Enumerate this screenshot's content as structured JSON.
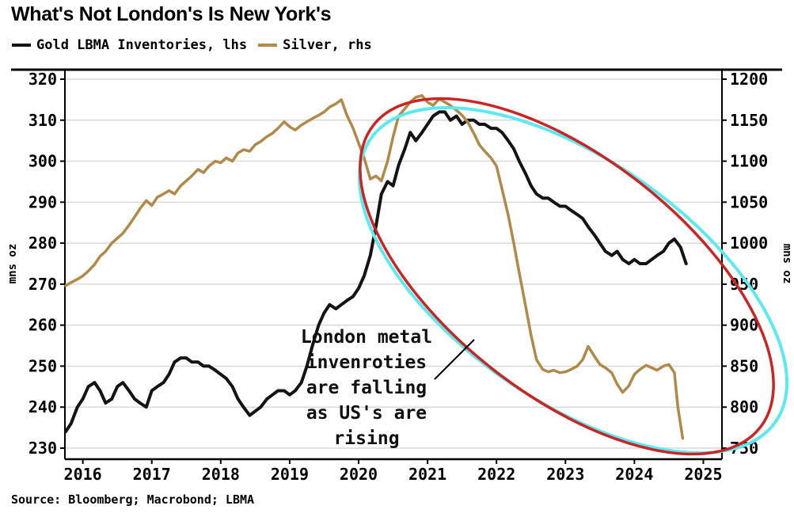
{
  "title": "What's Not London's Is New York's",
  "source": "Source: Bloomberg; Macrobond; LBMA",
  "legend": [
    {
      "label": "Gold LBMA Inventories, lhs",
      "color": "#141414"
    },
    {
      "label": "Silver, rhs",
      "color": "#b18a4a"
    }
  ],
  "annotation": {
    "text_lines": [
      "London metal",
      "invenroties",
      "are falling",
      "as US's are",
      "rising"
    ],
    "ellipse_color": "#cb2423",
    "ellipse_glow_color": "#5ce9f0",
    "pointer_color": "#000000"
  },
  "chart_data": {
    "type": "line",
    "title": "What's Not London's Is New York's",
    "grid": true,
    "legend_position": "top",
    "x_ticks": [
      2016,
      2017,
      2018,
      2019,
      2020,
      2021,
      2022,
      2023,
      2024,
      2025
    ],
    "x_range": [
      2015.74,
      2025.27
    ],
    "left_axis": {
      "label": "mns oz",
      "min": 230,
      "max": 320,
      "step": 10
    },
    "right_axis": {
      "label": "mns oz",
      "min": 750,
      "max": 1200,
      "step": 50
    },
    "series": [
      {
        "name": "Gold LBMA Inventories, lhs",
        "axis": "left",
        "color": "#141414",
        "x": [
          2015.75,
          2015.83,
          2015.92,
          2016.0,
          2016.08,
          2016.17,
          2016.25,
          2016.33,
          2016.42,
          2016.5,
          2016.58,
          2016.67,
          2016.75,
          2016.83,
          2016.92,
          2017.0,
          2017.08,
          2017.17,
          2017.25,
          2017.33,
          2017.42,
          2017.5,
          2017.58,
          2017.67,
          2017.75,
          2017.83,
          2017.92,
          2018.0,
          2018.08,
          2018.17,
          2018.25,
          2018.33,
          2018.42,
          2018.5,
          2018.58,
          2018.67,
          2018.75,
          2018.83,
          2018.92,
          2019.0,
          2019.08,
          2019.17,
          2019.25,
          2019.33,
          2019.42,
          2019.5,
          2019.58,
          2019.67,
          2019.75,
          2019.83,
          2019.92,
          2020.0,
          2020.08,
          2020.17,
          2020.25,
          2020.33,
          2020.42,
          2020.5,
          2020.58,
          2020.67,
          2020.75,
          2020.83,
          2020.92,
          2021.0,
          2021.08,
          2021.17,
          2021.25,
          2021.33,
          2021.42,
          2021.5,
          2021.58,
          2021.67,
          2021.75,
          2021.83,
          2021.92,
          2022.0,
          2022.08,
          2022.17,
          2022.25,
          2022.33,
          2022.42,
          2022.5,
          2022.58,
          2022.67,
          2022.75,
          2022.83,
          2022.92,
          2023.0,
          2023.08,
          2023.17,
          2023.25,
          2023.33,
          2023.42,
          2023.5,
          2023.58,
          2023.67,
          2023.75,
          2023.83,
          2023.92,
          2024.0,
          2024.08,
          2024.17,
          2024.25,
          2024.33,
          2024.42,
          2024.5,
          2024.58,
          2024.67,
          2024.75
        ],
        "values": [
          234,
          236,
          240,
          242,
          245,
          246,
          244,
          241,
          242,
          245,
          246,
          244,
          242,
          241,
          240,
          244,
          245,
          246,
          248,
          251,
          252,
          252,
          251,
          251,
          250,
          250,
          249,
          248,
          247,
          245,
          242,
          240,
          238,
          239,
          240,
          242,
          243,
          244,
          244,
          243,
          244,
          246,
          250,
          255,
          260,
          263,
          265,
          264,
          265,
          266,
          267,
          269,
          272,
          277,
          284,
          292,
          295,
          294,
          299,
          303,
          307,
          305,
          307,
          309,
          311,
          312,
          312,
          310,
          311,
          309,
          310,
          310,
          309,
          309,
          308,
          308,
          307,
          305,
          303,
          300,
          297,
          294,
          292,
          291,
          291,
          290,
          289,
          289,
          288,
          287,
          286,
          284,
          282,
          280,
          278,
          277,
          278,
          276,
          275,
          276,
          275,
          275,
          276,
          277,
          278,
          280,
          281,
          279,
          275
        ]
      },
      {
        "name": "Silver, rhs",
        "axis": "right",
        "color": "#b18a4a",
        "x": [
          2015.75,
          2015.83,
          2015.92,
          2016.0,
          2016.08,
          2016.17,
          2016.25,
          2016.33,
          2016.42,
          2016.5,
          2016.58,
          2016.67,
          2016.75,
          2016.83,
          2016.92,
          2017.0,
          2017.08,
          2017.17,
          2017.25,
          2017.33,
          2017.42,
          2017.5,
          2017.58,
          2017.67,
          2017.75,
          2017.83,
          2017.92,
          2018.0,
          2018.08,
          2018.17,
          2018.25,
          2018.33,
          2018.42,
          2018.5,
          2018.58,
          2018.67,
          2018.75,
          2018.83,
          2018.92,
          2019.0,
          2019.08,
          2019.17,
          2019.25,
          2019.33,
          2019.42,
          2019.5,
          2019.58,
          2019.67,
          2019.75,
          2019.83,
          2019.92,
          2020.0,
          2020.08,
          2020.17,
          2020.25,
          2020.33,
          2020.42,
          2020.5,
          2020.58,
          2020.67,
          2020.75,
          2020.83,
          2020.92,
          2021.0,
          2021.08,
          2021.17,
          2021.25,
          2021.33,
          2021.42,
          2021.5,
          2021.58,
          2021.67,
          2021.75,
          2021.83,
          2021.92,
          2022.0,
          2022.08,
          2022.17,
          2022.25,
          2022.33,
          2022.42,
          2022.5,
          2022.58,
          2022.67,
          2022.75,
          2022.83,
          2022.92,
          2023.0,
          2023.08,
          2023.17,
          2023.25,
          2023.33,
          2023.42,
          2023.5,
          2023.58,
          2023.67,
          2023.75,
          2023.83,
          2023.92,
          2024.0,
          2024.08,
          2024.17,
          2024.25,
          2024.33,
          2024.42,
          2024.5,
          2024.58,
          2024.63,
          2024.7
        ],
        "values": [
          948,
          952,
          956,
          960,
          966,
          974,
          984,
          990,
          1000,
          1006,
          1012,
          1022,
          1032,
          1042,
          1052,
          1046,
          1056,
          1060,
          1064,
          1060,
          1070,
          1076,
          1082,
          1090,
          1086,
          1094,
          1100,
          1098,
          1104,
          1100,
          1110,
          1114,
          1112,
          1120,
          1124,
          1130,
          1134,
          1140,
          1148,
          1142,
          1138,
          1144,
          1148,
          1152,
          1156,
          1160,
          1166,
          1170,
          1175,
          1156,
          1140,
          1122,
          1104,
          1078,
          1082,
          1076,
          1100,
          1130,
          1155,
          1164,
          1172,
          1178,
          1180,
          1172,
          1168,
          1176,
          1172,
          1168,
          1162,
          1156,
          1148,
          1134,
          1120,
          1112,
          1104,
          1094,
          1066,
          1034,
          1000,
          964,
          924,
          888,
          858,
          846,
          843,
          845,
          842,
          843,
          846,
          850,
          858,
          874,
          862,
          852,
          848,
          842,
          828,
          818,
          826,
          840,
          846,
          851,
          848,
          845,
          850,
          852,
          842,
          800,
          762
        ]
      }
    ]
  }
}
